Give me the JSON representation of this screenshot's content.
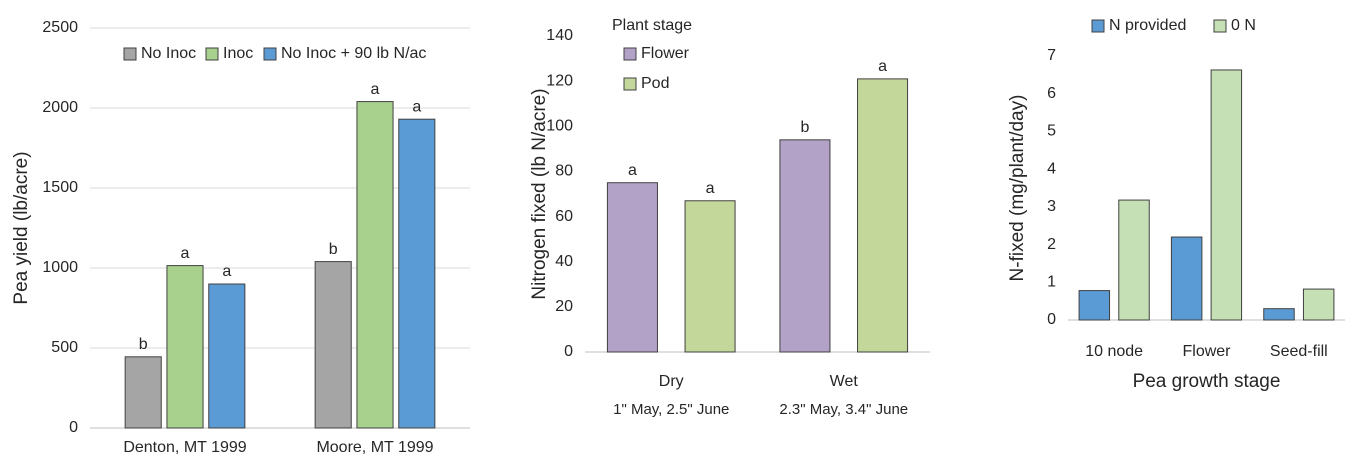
{
  "chart_data": [
    {
      "type": "bar",
      "ylabel": "Pea yield (lb/acre)",
      "categories": [
        "Denton, MT 1999",
        "Moore, MT 1999"
      ],
      "series": [
        {
          "name": "No Inoc",
          "color": "#a5a5a5",
          "values": [
            445,
            1040
          ],
          "letters": [
            "b",
            "b"
          ]
        },
        {
          "name": "Inoc",
          "color": "#a9d18e",
          "values": [
            1015,
            2040
          ],
          "letters": [
            "a",
            "a"
          ]
        },
        {
          "name": "No Inoc + 90 lb N/ac",
          "color": "#5b9bd5",
          "values": [
            900,
            1930
          ],
          "letters": [
            "a",
            "a"
          ]
        }
      ],
      "ylim": [
        0,
        2500
      ],
      "yticks": [
        0,
        500,
        1000,
        1500,
        2000,
        2500
      ],
      "grid": true,
      "legend": "top"
    },
    {
      "type": "bar",
      "ylabel": "Nitrogen fixed (lb N/acre)",
      "legend_title": "Plant stage",
      "categories": [
        "Dry",
        "Wet"
      ],
      "category_notes": [
        "1\" May, 2.5\" June",
        "2.3\" May, 3.4\" June"
      ],
      "series": [
        {
          "name": "Flower",
          "color": "#b3a2c7",
          "values": [
            75,
            94
          ],
          "letters": [
            "a",
            "b"
          ]
        },
        {
          "name": "Pod",
          "color": "#c4d79b",
          "values": [
            67,
            121
          ],
          "letters": [
            "a",
            "a"
          ]
        }
      ],
      "ylim": [
        0,
        140
      ],
      "yticks": [
        0,
        20,
        40,
        60,
        80,
        100,
        120,
        140
      ],
      "grid": false,
      "legend": "top left"
    },
    {
      "type": "bar",
      "ylabel": "N-fixed (mg/plant/day)",
      "xlabel": "Pea growth stage",
      "categories": [
        "10 node",
        "Flower",
        "Seed-fill"
      ],
      "series": [
        {
          "name": "N provided",
          "color": "#5b9bd5",
          "values": [
            0.78,
            2.2,
            0.3
          ]
        },
        {
          "name": "0 N",
          "color": "#c5e0b4",
          "values": [
            3.18,
            6.63,
            0.82
          ]
        }
      ],
      "ylim": [
        0,
        7
      ],
      "yticks": [
        0,
        1,
        2,
        3,
        4,
        5,
        6,
        7
      ],
      "grid": false,
      "legend": "top"
    }
  ]
}
